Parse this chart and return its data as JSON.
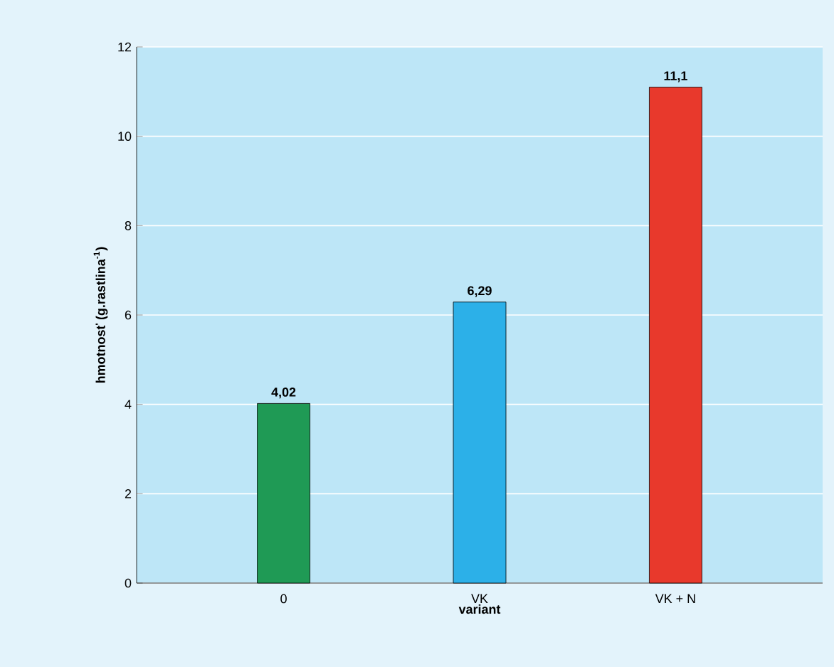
{
  "chart_data": {
    "type": "bar",
    "xlabel": "variant",
    "ylabel": "hmotnosť (g.rastlina$^{-1}$)",
    "categories": [
      "0",
      "VK",
      "VK + N"
    ],
    "values": [
      4.02,
      6.29,
      11.1
    ],
    "colors": [
      "#1f9a55",
      "#2cb0e8",
      "#e8392c"
    ],
    "value_labels": [
      "4,02",
      "6,29",
      "11,1"
    ],
    "ylim": [
      0,
      12
    ],
    "yticks": [
      0,
      2,
      4,
      6,
      8,
      10,
      12
    ],
    "grid": "y"
  }
}
